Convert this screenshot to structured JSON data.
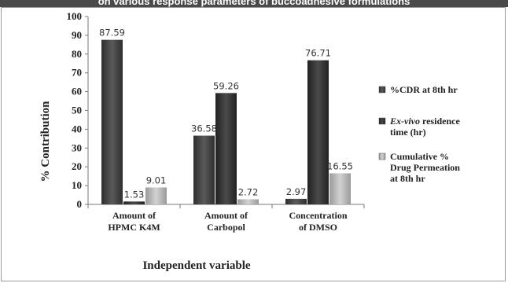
{
  "banner": {
    "text": "on various response parameters of buccoadhesive formulations"
  },
  "chart_data": {
    "type": "bar",
    "categories": [
      [
        "Amount of",
        "HPMC K4M"
      ],
      [
        "Amount of",
        "Carbopol"
      ],
      [
        "Concentration",
        "of DMSO"
      ]
    ],
    "series": [
      {
        "name": "%CDR at 8th hr",
        "name_lines": [
          "%CDR at 8th hr"
        ],
        "color": "#4a4a4a",
        "values": [
          87.59,
          36.58,
          2.97
        ],
        "labels": [
          "87.59",
          "36.58",
          "2.97"
        ]
      },
      {
        "name": "Ex-vivo residence time (hr)",
        "name_lines": [
          "Ex-vivo residence",
          "time (hr)"
        ],
        "color": "#333333",
        "values": [
          1.53,
          59.26,
          76.71
        ],
        "labels": [
          "1.53",
          "59.26",
          "76.71"
        ]
      },
      {
        "name": "Cumulative % Drug Permeation at 8th hr",
        "name_lines": [
          "Cumulative %",
          "Drug Permeation",
          "at 8th hr"
        ],
        "color": "#b4b4b4",
        "values": [
          9.01,
          2.72,
          16.55
        ],
        "labels": [
          "9.01",
          "2.72",
          "16.55"
        ]
      }
    ],
    "xlabel": "Independent variable",
    "ylabel": "% Contribution",
    "ylim": [
      0,
      100
    ],
    "yticks": [
      0,
      10,
      20,
      30,
      40,
      50,
      60,
      70,
      80,
      90,
      100
    ],
    "grid": false,
    "legend": "right"
  }
}
